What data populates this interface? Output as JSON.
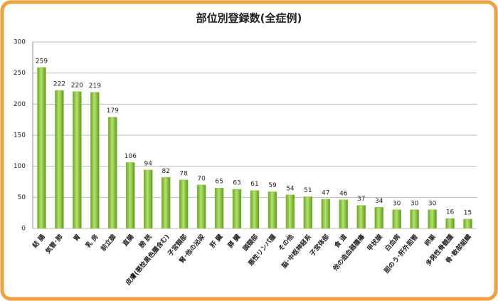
{
  "chart_data": {
    "type": "bar",
    "title": "部位別登録数(全症例)",
    "categories": [
      "結 腸",
      "気管･肺",
      "胃",
      "乳 房",
      "前立腺",
      "直腸",
      "膀 胱",
      "皮膚(悪性黒色腫含む)",
      "子宮頸部",
      "腎･他の泌尿",
      "肝 臓",
      "膵 臓",
      "頭頸部",
      "悪性リンパ腫",
      "その他",
      "脳･中枢神経系",
      "子宮体部",
      "食 道",
      "他の造血器腫瘍",
      "甲状腺",
      "白血病",
      "胆のう･肝外胆管",
      "卵巣",
      "多発性骨髄腫",
      "骨･軟部組織"
    ],
    "values": [
      259,
      222,
      220,
      219,
      179,
      106,
      94,
      82,
      78,
      70,
      65,
      63,
      61,
      59,
      54,
      51,
      47,
      46,
      37,
      34,
      30,
      30,
      30,
      16,
      15
    ],
    "color": "#8dc63f",
    "ylim": [
      0,
      300
    ],
    "yticks": [
      0,
      50,
      100,
      150,
      200,
      250,
      300
    ],
    "grid": true
  }
}
